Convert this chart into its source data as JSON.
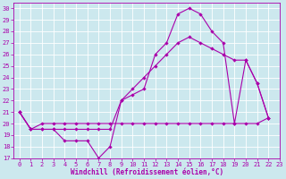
{
  "xlabel": "Windchill (Refroidissement éolien,°C)",
  "background_color": "#cce8ee",
  "grid_color": "#ffffff",
  "line_color": "#aa00aa",
  "xlim": [
    -0.5,
    23
  ],
  "ylim": [
    17,
    30.5
  ],
  "xticks": [
    0,
    1,
    2,
    3,
    4,
    5,
    6,
    7,
    8,
    9,
    10,
    11,
    12,
    13,
    14,
    15,
    16,
    17,
    18,
    19,
    20,
    21,
    22,
    23
  ],
  "yticks": [
    17,
    18,
    19,
    20,
    21,
    22,
    23,
    24,
    25,
    26,
    27,
    28,
    29,
    30
  ],
  "series1_x": [
    0,
    1,
    2,
    3,
    4,
    5,
    6,
    7,
    8,
    9,
    10,
    11,
    12,
    13,
    14,
    15,
    16,
    17,
    18,
    19,
    20,
    21,
    22
  ],
  "series1_y": [
    21.0,
    19.5,
    19.5,
    19.5,
    18.5,
    18.5,
    18.5,
    17.0,
    18.0,
    22.0,
    22.5,
    23.0,
    26.0,
    27.0,
    29.5,
    30.0,
    29.5,
    28.0,
    27.0,
    20.0,
    25.5,
    23.5,
    20.5
  ],
  "series2_x": [
    0,
    1,
    2,
    3,
    4,
    5,
    6,
    7,
    8,
    9,
    10,
    11,
    12,
    13,
    14,
    15,
    16,
    17,
    18,
    19,
    20,
    21,
    22
  ],
  "series2_y": [
    21.0,
    19.5,
    20.0,
    20.0,
    20.0,
    20.0,
    20.0,
    20.0,
    20.0,
    20.0,
    20.0,
    20.0,
    20.0,
    20.0,
    20.0,
    20.0,
    20.0,
    20.0,
    20.0,
    20.0,
    20.0,
    20.0,
    20.5
  ],
  "series3_x": [
    0,
    1,
    2,
    3,
    4,
    5,
    6,
    7,
    8,
    9,
    10,
    11,
    12,
    13,
    14,
    15,
    16,
    17,
    18,
    19,
    20,
    21,
    22
  ],
  "series3_y": [
    21.0,
    19.5,
    19.5,
    19.5,
    19.5,
    19.5,
    19.5,
    19.5,
    19.5,
    22.0,
    23.0,
    24.0,
    25.0,
    26.0,
    27.0,
    27.5,
    27.0,
    26.5,
    26.0,
    25.5,
    25.5,
    23.5,
    20.5
  ],
  "tick_fontsize": 5,
  "xlabel_fontsize": 5.5,
  "linewidth": 0.8,
  "markersize": 2.2
}
